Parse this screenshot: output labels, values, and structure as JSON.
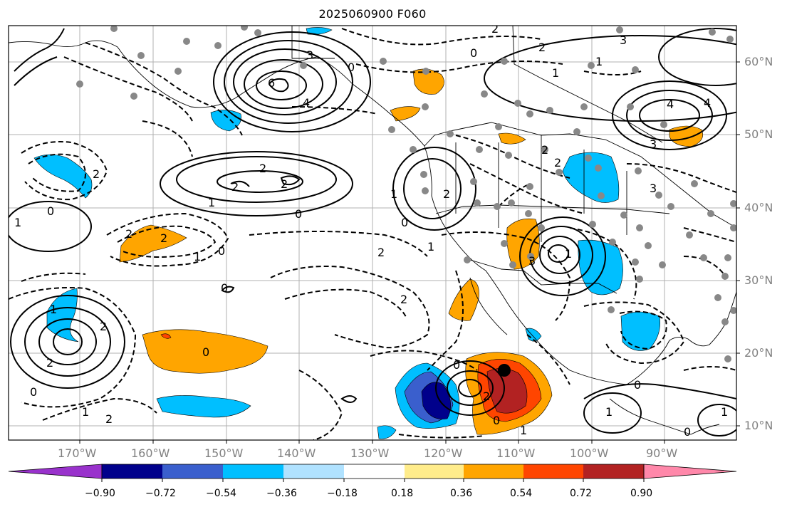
{
  "title": "2025060900 F060",
  "longitude_labels": [
    "170°W",
    "160°W",
    "150°W",
    "140°W",
    "130°W",
    "120°W",
    "110°W",
    "100°W",
    "90°W"
  ],
  "latitude_labels": [
    "60°N",
    "50°N",
    "40°N",
    "30°N",
    "20°N",
    "10°N"
  ],
  "colorbar": {
    "ticks": [
      "−0.90",
      "−0.72",
      "−0.54",
      "−0.36",
      "−0.18",
      "0.18",
      "0.36",
      "0.54",
      "0.72",
      "0.90"
    ],
    "colors": [
      "#9932cc",
      "#00008b",
      "#3a5fcd",
      "#00bfff",
      "#b0e2ff",
      "#ffffff",
      "#ffec8b",
      "#ffa500",
      "#ff4500",
      "#b22222",
      "#ff88aa"
    ]
  },
  "contour_labels": [
    "4",
    "3",
    "6",
    "4",
    "0",
    "1",
    "2",
    "2",
    "1",
    "2",
    "0",
    "1",
    "2",
    "1",
    "0",
    "2",
    "2",
    "0",
    "2",
    "1",
    "0",
    "0",
    "2",
    "3",
    "1",
    "4",
    "3",
    "2",
    "0",
    "1",
    "2",
    "1",
    "3",
    "0",
    "2",
    "1",
    "1",
    "0",
    "2",
    "0",
    "2",
    "0",
    "1",
    "2",
    "0",
    "1",
    "2",
    "3",
    "2",
    "1",
    "2",
    "0"
  ]
}
